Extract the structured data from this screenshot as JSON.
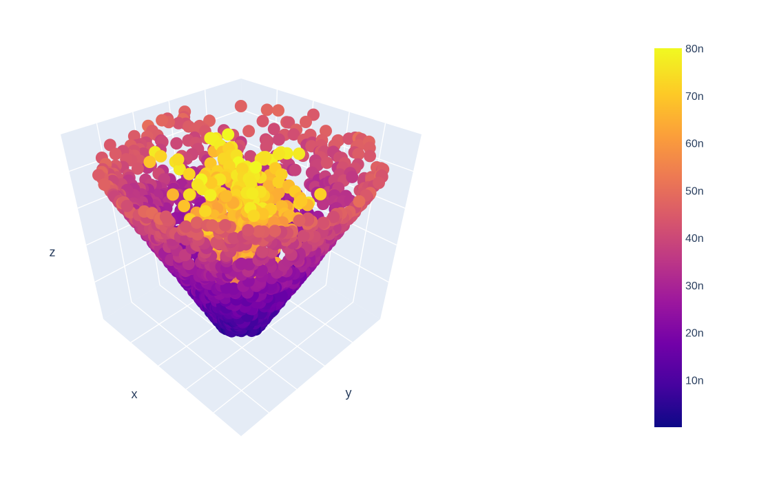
{
  "chart_data": {
    "type": "scatter3d",
    "axes": {
      "x_label": "x",
      "y_label": "y",
      "z_label": "z"
    },
    "colorbar": {
      "min": 0,
      "max": 80,
      "ticks": [
        "10n",
        "20n",
        "30n",
        "40n",
        "50n",
        "60n",
        "70n",
        "80n"
      ],
      "tick_values": [
        10,
        20,
        30,
        40,
        50,
        60,
        70,
        80
      ],
      "colorscale": [
        "#0d0887",
        "#46039f",
        "#7201a8",
        "#9c179e",
        "#bd3786",
        "#d8576b",
        "#ed7953",
        "#fb9f3a",
        "#fdca26",
        "#f0f921"
      ]
    },
    "marker_note": "",
    "pane_color": "#e5ecf6",
    "grid_color": "#ffffff"
  }
}
